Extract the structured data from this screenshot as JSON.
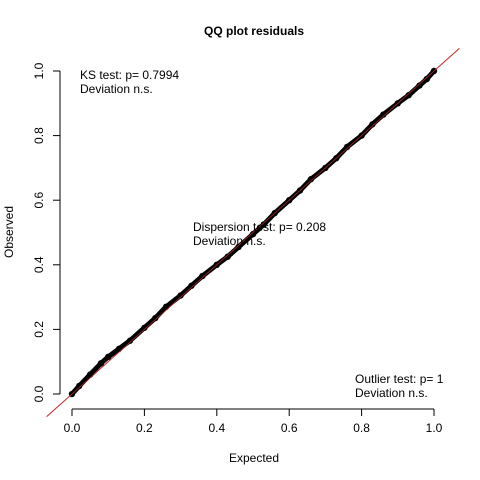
{
  "chart_data": {
    "type": "scatter",
    "title": "QQ plot residuals",
    "xlabel": "Expected",
    "ylabel": "Observed",
    "xlim": [
      0,
      1
    ],
    "ylim": [
      0,
      1
    ],
    "x_ticks": [
      "0.0",
      "0.2",
      "0.4",
      "0.6",
      "0.8",
      "1.0"
    ],
    "y_ticks": [
      "0.0",
      "0.2",
      "0.4",
      "0.6",
      "0.8",
      "1.0"
    ],
    "reference_line": {
      "slope": 1,
      "intercept": 0,
      "color": "#cc3333"
    },
    "point_color": "#000000",
    "series": [
      {
        "x": [
          0.0,
          0.02,
          0.05,
          0.08,
          0.1,
          0.13,
          0.16,
          0.2,
          0.23,
          0.26,
          0.3,
          0.33,
          0.36,
          0.4,
          0.43,
          0.46,
          0.5,
          0.53,
          0.56,
          0.6,
          0.63,
          0.66,
          0.7,
          0.73,
          0.76,
          0.8,
          0.83,
          0.86,
          0.9,
          0.93,
          0.96,
          0.98,
          1.0
        ],
        "y": [
          0.0,
          0.025,
          0.06,
          0.095,
          0.115,
          0.14,
          0.165,
          0.205,
          0.235,
          0.27,
          0.305,
          0.335,
          0.365,
          0.4,
          0.425,
          0.455,
          0.495,
          0.525,
          0.56,
          0.6,
          0.63,
          0.665,
          0.7,
          0.73,
          0.765,
          0.8,
          0.835,
          0.865,
          0.9,
          0.925,
          0.955,
          0.975,
          1.0
        ]
      }
    ],
    "annotations": {
      "ks_test": "KS test: p= 0.7994",
      "ks_deviation": "Deviation  n.s.",
      "dispersion_test": "Dispersion test: p= 0.208",
      "dispersion_deviation": "Deviation n.s.",
      "outlier_test": "Outlier test: p= 1",
      "outlier_deviation": "Deviation  n.s."
    }
  }
}
